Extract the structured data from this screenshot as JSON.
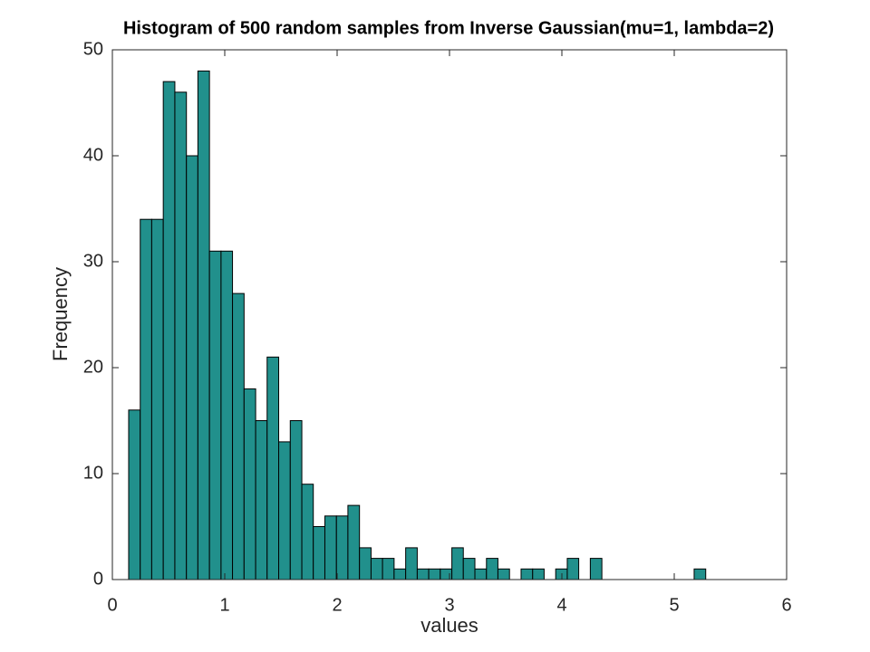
{
  "chart_data": {
    "type": "histogram",
    "title": "Histogram of 500 random samples from Inverse Gaussian(mu=1, lambda=2)",
    "x_label": "values",
    "y_label": "Frequency",
    "bins": [
      0.145,
      0.248,
      0.35,
      0.453,
      0.556,
      0.659,
      0.761,
      0.864,
      0.967,
      1.069,
      1.172,
      1.275,
      1.377,
      1.48,
      1.583,
      1.686,
      1.788,
      1.891,
      1.994,
      2.096,
      2.199,
      2.302,
      2.404,
      2.507,
      2.61,
      2.713,
      2.815,
      2.918,
      3.021,
      3.123,
      3.226,
      3.329,
      3.431,
      3.534,
      3.637,
      3.74,
      3.842,
      3.945,
      4.048,
      4.15,
      4.253,
      4.356,
      4.458,
      4.561,
      4.664,
      4.767,
      4.869,
      4.972,
      5.075,
      5.177,
      5.28
    ],
    "values": [
      16,
      34,
      34,
      47,
      46,
      40,
      48,
      31,
      31,
      27,
      18,
      15,
      21,
      13,
      15,
      9,
      5,
      6,
      6,
      7,
      3,
      2,
      2,
      1,
      3,
      1,
      1,
      1,
      3,
      2,
      1,
      2,
      1,
      0,
      1,
      1,
      0,
      1,
      2,
      0,
      2,
      0,
      0,
      0,
      0,
      0,
      0,
      0,
      0,
      1
    ],
    "color": "#21908c",
    "xlim": [
      0,
      6
    ],
    "xticks": [
      0,
      1,
      2,
      3,
      4,
      5,
      6
    ],
    "ylim": [
      0,
      50
    ],
    "yticks": [
      0,
      10,
      20,
      30,
      40,
      50
    ]
  }
}
